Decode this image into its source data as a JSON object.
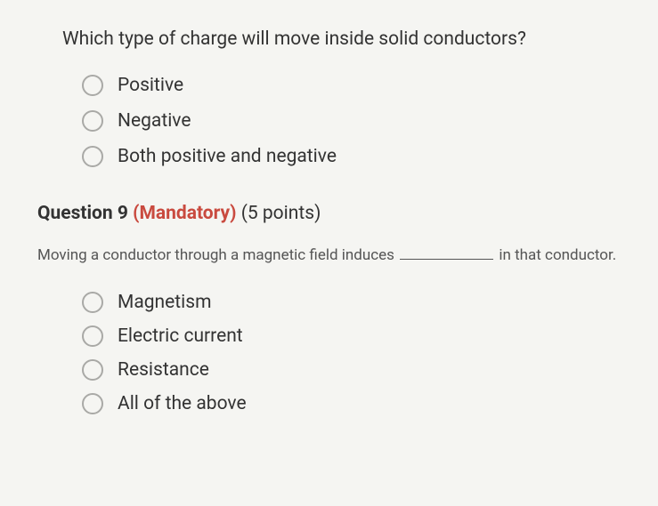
{
  "question8": {
    "prompt": "Which type of charge will move inside solid conductors?",
    "options": [
      "Positive",
      "Negative",
      "Both positive and negative"
    ]
  },
  "question9": {
    "header_label": "Question 9",
    "mandatory": "(Mandatory)",
    "points": "(5 points)",
    "prompt_before": "Moving a conductor through a magnetic field induces ",
    "prompt_after": " in that conductor.",
    "options": [
      "Magnetism",
      "Electric current",
      "Resistance",
      "All of the above"
    ]
  },
  "colors": {
    "text": "#333333",
    "mandatory": "#c94a3f",
    "radio_border": "#a9a9a6",
    "background": "#f5f5f2",
    "subprompt": "#555555"
  }
}
